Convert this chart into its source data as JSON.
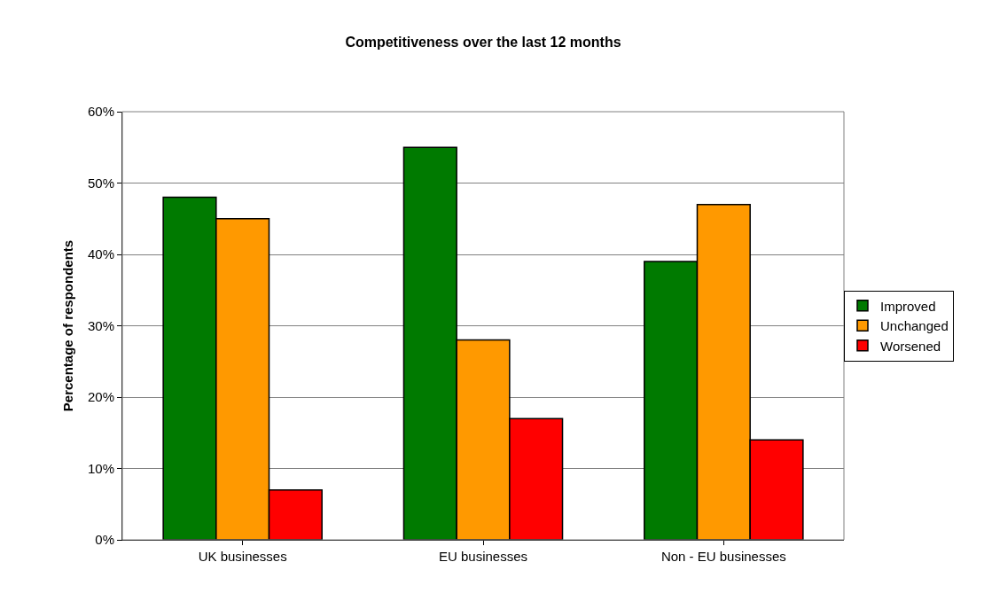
{
  "chart_data": {
    "type": "bar",
    "title": "Competitiveness over the last 12 months",
    "ylabel": "Percentage of respondents",
    "categories": [
      "UK businesses",
      "EU businesses",
      "Non - EU businesses"
    ],
    "series": [
      {
        "name": "Improved",
        "color": "#007a00",
        "values": [
          48,
          55,
          39
        ]
      },
      {
        "name": "Unchanged",
        "color": "#ff9900",
        "values": [
          45,
          28,
          47
        ]
      },
      {
        "name": "Worsened",
        "color": "#ff0000",
        "values": [
          7,
          17,
          14
        ]
      }
    ],
    "ylim": [
      0,
      60
    ],
    "yticks": [
      {
        "value": 0,
        "label": "0%"
      },
      {
        "value": 10,
        "label": "10%"
      },
      {
        "value": 20,
        "label": "20%"
      },
      {
        "value": 30,
        "label": "30%"
      },
      {
        "value": 40,
        "label": "40%"
      },
      {
        "value": 50,
        "label": "50%"
      },
      {
        "value": 60,
        "label": "60%"
      }
    ],
    "grid": "y",
    "legend": "right"
  }
}
